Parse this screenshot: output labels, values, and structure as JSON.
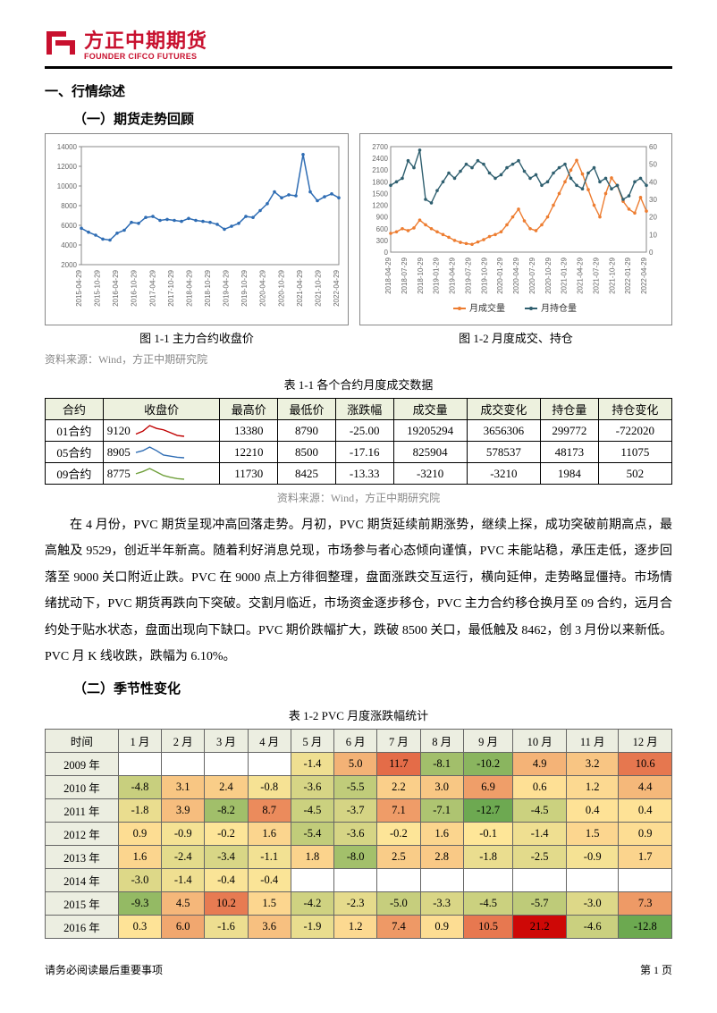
{
  "logo": {
    "cn": "方正中期期货",
    "en": "FOUNDER CIFCO FUTURES"
  },
  "section1_title": "一、行情综述",
  "subsection1_title": "（一）期货走势回顾",
  "chart1": {
    "type": "line",
    "caption": "图 1-1 主力合约收盘价",
    "line_color": "#2f6db4",
    "line_width": 1.5,
    "marker": "circle",
    "marker_size": 1.8,
    "background": "#ffffff",
    "border_color": "#888888",
    "ylim": [
      2000,
      14000
    ],
    "yticks": [
      2000,
      4000,
      6000,
      8000,
      10000,
      12000,
      14000
    ],
    "xlabels": [
      "2015-04-29",
      "2015-10-29",
      "2016-04-29",
      "2016-10-29",
      "2017-04-29",
      "2017-10-29",
      "2018-04-29",
      "2018-10-29",
      "2019-04-29",
      "2019-10-29",
      "2020-04-29",
      "2020-10-29",
      "2021-04-29",
      "2021-10-29",
      "2022-04-29"
    ],
    "values": [
      5700,
      5300,
      5000,
      4600,
      4500,
      5200,
      5500,
      6300,
      6200,
      6800,
      6900,
      6500,
      6600,
      6500,
      6400,
      6700,
      6500,
      6400,
      6300,
      6100,
      5600,
      5900,
      6200,
      6900,
      6800,
      7500,
      8200,
      9400,
      8800,
      9100,
      9000,
      13200,
      9400,
      8500,
      8900,
      9200,
      8800
    ]
  },
  "chart2": {
    "type": "line-dual",
    "caption": "图 1-2 月度成交、持仓",
    "background": "#ffffff",
    "border_color": "#888888",
    "legend": {
      "items": [
        {
          "label": "月成交量",
          "color": "#ed7d31"
        },
        {
          "label": "月持仓量",
          "color": "#2f5f6f"
        }
      ],
      "position": "bottom"
    },
    "y_left": {
      "lim": [
        0,
        2700
      ],
      "ticks": [
        0,
        300,
        600,
        900,
        1200,
        1500,
        1800,
        2100,
        2400,
        2700
      ]
    },
    "y_right": {
      "lim": [
        0,
        60
      ],
      "ticks": [
        0,
        10,
        20,
        30,
        40,
        50,
        60
      ]
    },
    "xlabels": [
      "2018-04-29",
      "2018-07-29",
      "2018-10-29",
      "2019-01-29",
      "2019-04-29",
      "2019-07-29",
      "2019-10-29",
      "2020-01-29",
      "2020-04-29",
      "2020-07-29",
      "2020-10-29",
      "2021-01-29",
      "2021-04-29",
      "2021-07-29",
      "2021-10-29",
      "2022-01-29",
      "2022-04-29"
    ],
    "series_vol": {
      "color": "#ed7d31",
      "values": [
        480,
        520,
        600,
        550,
        620,
        820,
        700,
        600,
        520,
        450,
        380,
        300,
        250,
        220,
        200,
        260,
        320,
        400,
        450,
        520,
        700,
        900,
        1100,
        800,
        600,
        550,
        700,
        900,
        1200,
        1500,
        1800,
        2100,
        2350,
        2000,
        1600,
        1200,
        900,
        1500,
        1900,
        1700,
        1300,
        1100,
        1000,
        1400,
        1050
      ]
    },
    "series_oi": {
      "color": "#2f5f6f",
      "values": [
        38,
        40,
        42,
        52,
        48,
        58,
        30,
        28,
        35,
        40,
        45,
        42,
        46,
        50,
        48,
        52,
        50,
        45,
        42,
        44,
        48,
        50,
        52,
        46,
        42,
        44,
        38,
        40,
        45,
        48,
        50,
        42,
        38,
        36,
        45,
        48,
        40,
        42,
        36,
        38,
        30,
        32,
        40,
        42,
        38
      ]
    }
  },
  "source1": "资料来源：Wind，方正中期研究院",
  "table1_title": "表 1-1 各个合约月度成交数据",
  "table1": {
    "columns": [
      "合约",
      "收盘价",
      "最高价",
      "最低价",
      "涨跌幅",
      "成交量",
      "成交变化",
      "持仓量",
      "持仓变化"
    ],
    "rows": [
      {
        "c": "01合约",
        "spark_color": "#c00000",
        "spark": [
          9200,
          9300,
          9500,
          9400,
          9350,
          9250,
          9150,
          9120
        ],
        "max": "13380",
        "min": "8790",
        "chg": "-25.00",
        "vol": "19205294",
        "volchg": "3656306",
        "oi": "299772",
        "oichg": "-722020"
      },
      {
        "c": "05合约",
        "spark_color": "#2f6db4",
        "spark": [
          9050,
          9100,
          9200,
          9100,
          8980,
          8950,
          8920,
          8905
        ],
        "max": "12210",
        "min": "8500",
        "chg": "-17.16",
        "vol": "825904",
        "volchg": "578537",
        "oi": "48173",
        "oichg": "11075"
      },
      {
        "c": "09合约",
        "spark_color": "#70a03c",
        "spark": [
          8900,
          8950,
          9020,
          8940,
          8860,
          8820,
          8790,
          8775
        ],
        "max": "11730",
        "min": "8425",
        "chg": "-13.33",
        "vol": "-3210",
        "volchg": "-3210",
        "oi": "1984",
        "oichg": "502"
      }
    ],
    "header_bg": "#edf1de",
    "close_col_vals": [
      "9120",
      "8905",
      "8775"
    ]
  },
  "source2": "资料来源：Wind，方正中期研究院",
  "body_text": "在 4 月份，PVC 期货呈现冲高回落走势。月初，PVC 期货延续前期涨势，继续上探，成功突破前期高点，最高触及 9529，创近半年新高。随着利好消息兑现，市场参与者心态倾向谨慎，PVC 未能站稳，承压走低，逐步回落至 9000 关口附近止跌。PVC 在 9000 点上方徘徊整理，盘面涨跌交互运行，横向延伸，走势略显僵持。市场情绪扰动下，PVC 期货再跌向下突破。交割月临近，市场资金逐步移仓，PVC 主力合约移仓换月至 09 合约，远月合约处于贴水状态，盘面出现向下缺口。PVC 期价跌幅扩大，跌破 8500 关口，最低触及 8462，创 3 月份以来新低。PVC 月 K 线收跌，跌幅为 6.10%。",
  "subsection2_title": "（二）季节性变化",
  "table2_title": "表 1-2 PVC 月度涨跌幅统计",
  "table2": {
    "columns": [
      "时间",
      "1 月",
      "2 月",
      "3 月",
      "4 月",
      "5 月",
      "6 月",
      "7 月",
      "8 月",
      "9 月",
      "10 月",
      "11 月",
      "12 月"
    ],
    "header_bg": "#eceee1",
    "color_scale": {
      "min_color": "#6aa84f",
      "mid_color": "#ffe699",
      "max_color": "#cc0000",
      "min_val": -13,
      "mid_val": 0,
      "max_val": 22
    },
    "rows": [
      {
        "year": "2009 年",
        "vals": [
          null,
          null,
          null,
          null,
          -1.4,
          5.0,
          11.7,
          -8.1,
          -10.2,
          4.9,
          3.2,
          10.6
        ]
      },
      {
        "year": "2010 年",
        "vals": [
          -4.8,
          3.1,
          2.4,
          -0.8,
          -3.6,
          -5.5,
          2.2,
          3.0,
          6.9,
          0.6,
          1.2,
          4.4
        ]
      },
      {
        "year": "2011 年",
        "vals": [
          -1.8,
          3.9,
          -8.2,
          8.7,
          -4.5,
          -3.7,
          7.1,
          -7.1,
          -12.7,
          -4.5,
          0.4,
          0.4
        ]
      },
      {
        "year": "2012 年",
        "vals": [
          0.9,
          -0.9,
          -0.2,
          1.6,
          -5.4,
          -3.6,
          -0.2,
          1.6,
          -0.1,
          -1.4,
          1.5,
          0.9
        ]
      },
      {
        "year": "2013 年",
        "vals": [
          1.6,
          -2.4,
          -3.4,
          -1.1,
          1.8,
          -8.0,
          2.5,
          2.8,
          -1.8,
          -2.5,
          -0.9,
          1.7
        ]
      },
      {
        "year": "2014 年",
        "vals": [
          -3.0,
          -1.4,
          -0.4,
          -0.4,
          null,
          null,
          null,
          null,
          null,
          null,
          null,
          null
        ]
      },
      {
        "year": "2015 年",
        "vals": [
          -9.3,
          4.5,
          10.2,
          1.5,
          -4.2,
          -2.3,
          -5.0,
          -3.3,
          -4.5,
          -5.7,
          -3.0,
          7.3
        ]
      },
      {
        "year": "2016 年",
        "vals": [
          0.3,
          6.0,
          -1.6,
          3.6,
          -1.9,
          1.2,
          7.4,
          0.9,
          10.5,
          21.2,
          -4.6,
          -12.8
        ]
      }
    ]
  },
  "footer_left": "请务必阅读最后重要事项",
  "footer_right": "第 1 页"
}
